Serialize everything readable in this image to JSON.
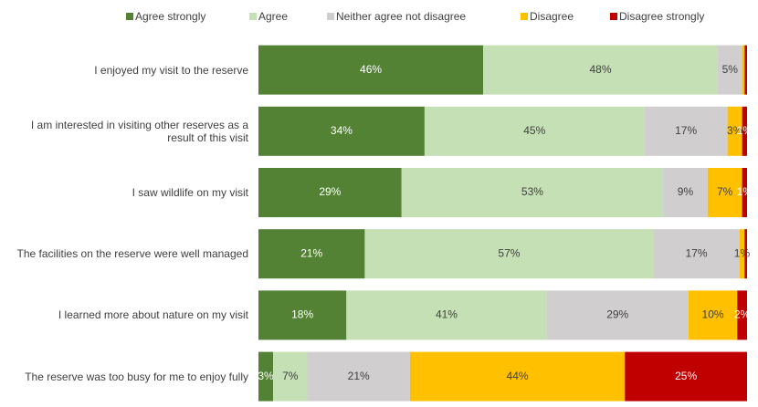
{
  "chart_data": {
    "type": "stacked_bar_horizontal",
    "categories": [
      "I enjoyed my visit to the reserve",
      "I am interested in visiting other reserves as a result of this visit",
      "I saw wildlife on my visit",
      "The facilities on the reserve were well managed",
      "I learned more about nature on my visit",
      "The reserve was too busy for me to enjoy fully"
    ],
    "series": [
      {
        "name": "Agree strongly",
        "color": "#548235",
        "values": [
          46,
          34,
          29,
          21,
          18,
          3
        ],
        "value_labels": [
          "46%",
          "34%",
          "29%",
          "21%",
          "18%",
          "3%"
        ]
      },
      {
        "name": "Agree",
        "color": "#c5e0b4",
        "values": [
          48,
          45,
          53,
          57,
          41,
          7
        ],
        "value_labels": [
          "48%",
          "45%",
          "53%",
          "57%",
          "41%",
          "7%"
        ]
      },
      {
        "name": "Neither agree not disagree",
        "color": "#d0cece",
        "values": [
          5,
          17,
          9,
          17,
          29,
          21
        ],
        "value_labels": [
          "5%",
          "17%",
          "9%",
          "17%",
          "29%",
          "21%"
        ]
      },
      {
        "name": "Disagree",
        "color": "#ffc000",
        "values": [
          0.5,
          3,
          7,
          1,
          10,
          44
        ],
        "value_labels": [
          null,
          "3%",
          "7%",
          "1%",
          "10%",
          "44%"
        ]
      },
      {
        "name": "Disagree strongly",
        "color": "#c00000",
        "values": [
          0.5,
          1,
          1,
          0.5,
          2,
          25
        ],
        "value_labels": [
          null,
          "1%",
          "1%",
          null,
          "2%",
          "25%"
        ]
      }
    ]
  }
}
